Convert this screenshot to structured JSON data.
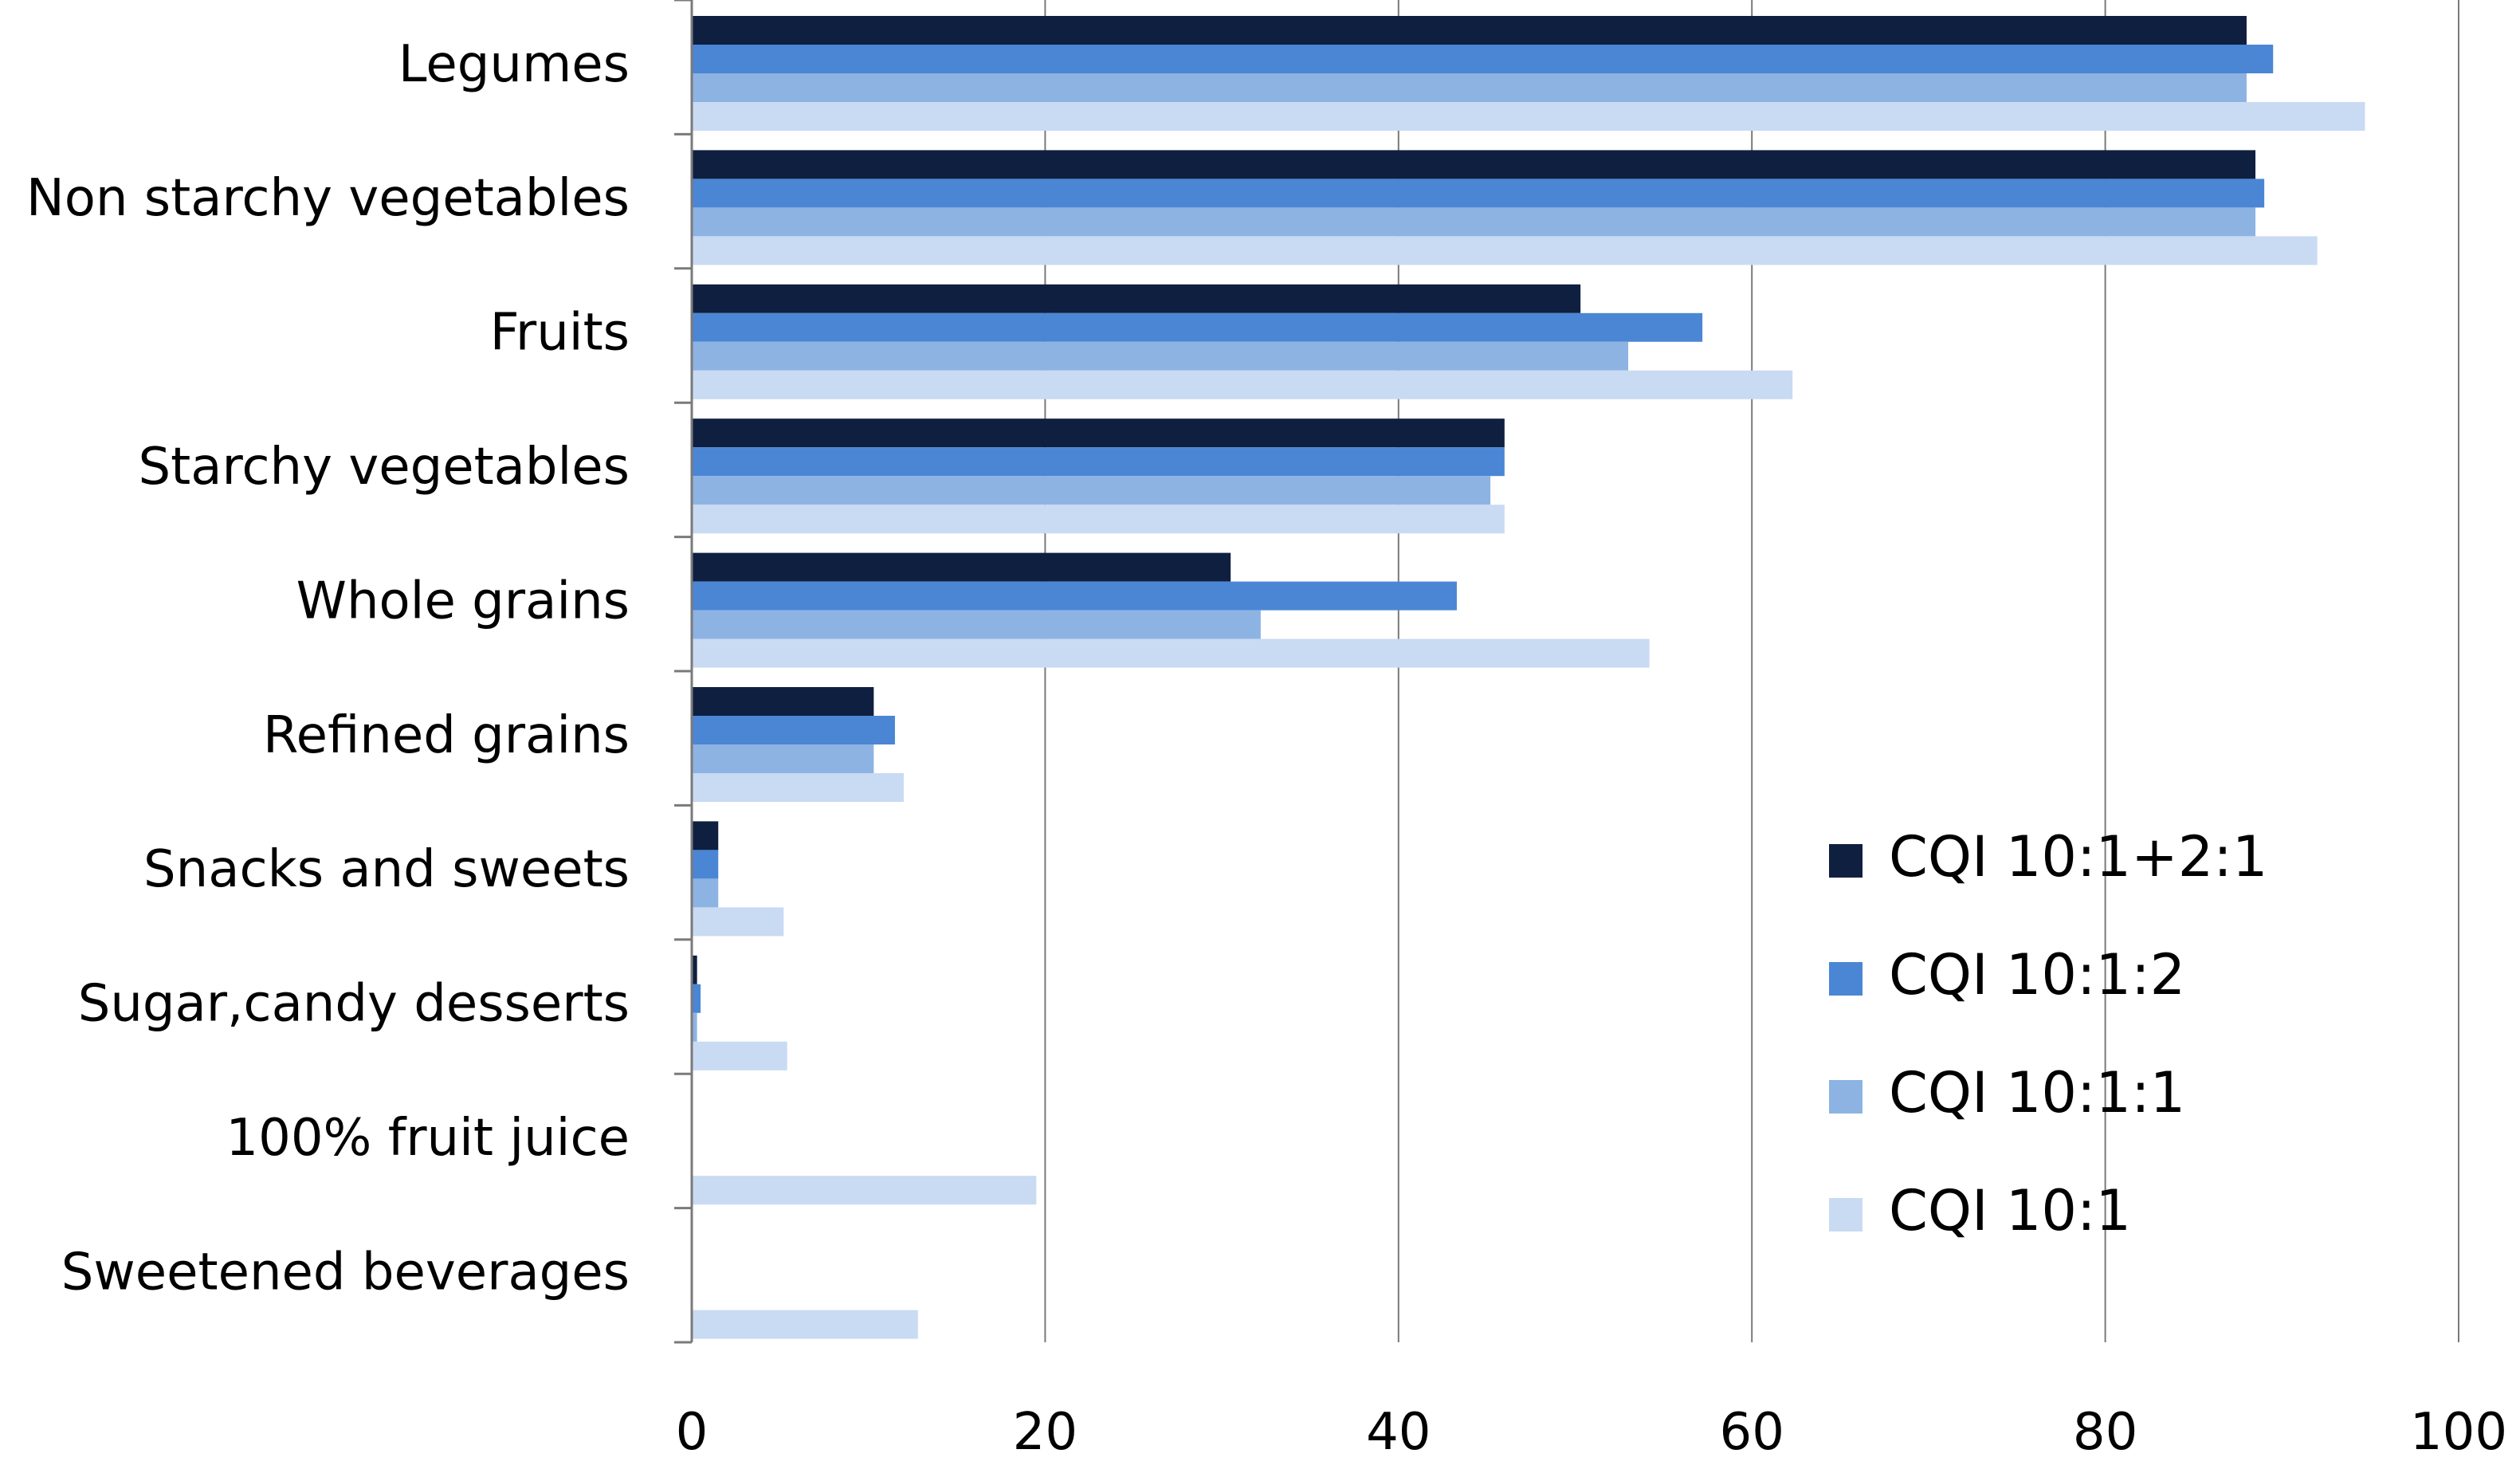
{
  "chart_data": {
    "type": "bar",
    "orientation": "horizontal",
    "title": "",
    "xlabel": "",
    "ylabel": "",
    "xlim": [
      0,
      100
    ],
    "x_ticks": [
      0,
      20,
      40,
      60,
      80,
      100
    ],
    "grid": true,
    "legend_position": "right",
    "categories": [
      "Legumes",
      "Non starchy vegetables",
      "Fruits",
      "Starchy vegetables",
      "Whole grains",
      "Refined grains",
      "Snacks and sweets",
      "Sugar,candy desserts",
      "100% fruit juice",
      "Sweetened beverages"
    ],
    "series": [
      {
        "name": "CQI 10:1+2:1",
        "color": "#0f1f40",
        "values": [
          88,
          88.5,
          50.3,
          46,
          30.5,
          10.3,
          1.5,
          0.3,
          0,
          0
        ]
      },
      {
        "name": "CQI 10:1:2",
        "color": "#4a86d4",
        "values": [
          89.5,
          89,
          57.2,
          46,
          43.3,
          11.5,
          1.5,
          0.5,
          0,
          0
        ]
      },
      {
        "name": "CQI 10:1:1",
        "color": "#8db3e3",
        "values": [
          88,
          88.5,
          53,
          45.2,
          32.2,
          10.3,
          1.5,
          0.3,
          0,
          0
        ]
      },
      {
        "name": "CQI 10:1",
        "color": "#c9daf3",
        "values": [
          94.7,
          92,
          62.3,
          46,
          54.2,
          12,
          5.2,
          5.4,
          19.5,
          12.8
        ]
      }
    ]
  }
}
